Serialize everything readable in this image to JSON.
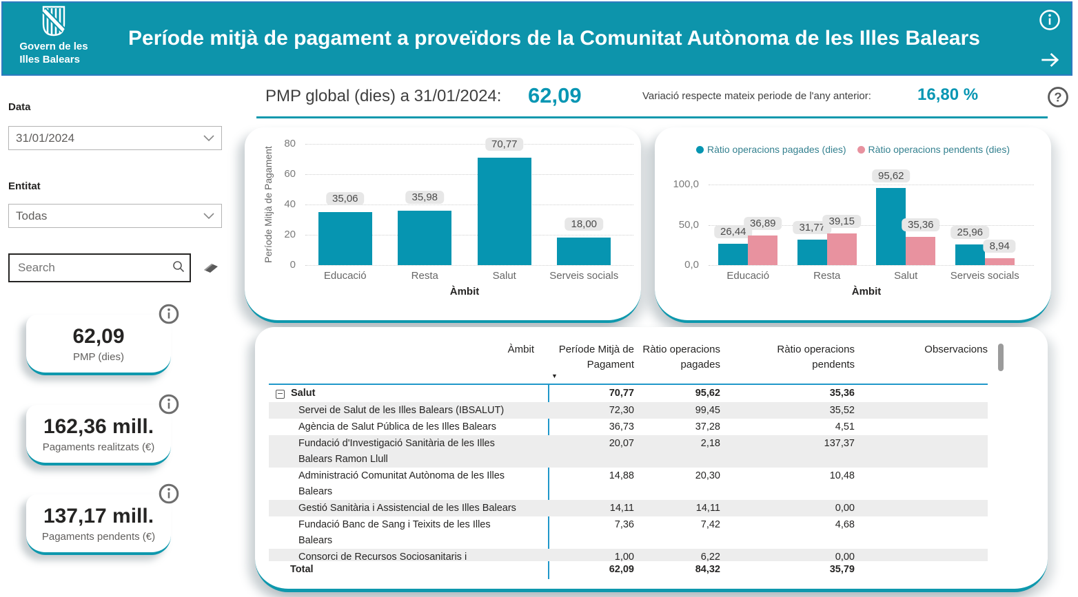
{
  "theme": {
    "teal": "#0695b1",
    "pink": "#e8929f",
    "accent": "#0e98ad",
    "header_bg": "#0d94ab",
    "line_blue": "#1f97c9"
  },
  "header": {
    "logo_line1": "Govern de les",
    "logo_line2": "Illes Balears",
    "title": "Període mitjà de pagament a proveïdors de la Comunitat Autònoma de les Illes Balears"
  },
  "headline": {
    "left_label": "PMP global (dies) a 31/01/2024:",
    "left_value": "62,09",
    "right_label": "Variació respecte mateix periode de l'any anterior:",
    "right_value": "16,80 %"
  },
  "filters": {
    "data_label": "Data",
    "data_value": "31/01/2024",
    "entitat_label": "Entitat",
    "entitat_value": "Todas",
    "search_placeholder": "Search"
  },
  "kpis": [
    {
      "value": "62,09",
      "label": "PMP (dies)"
    },
    {
      "value": "162,36 mill.",
      "label": "Pagaments realitzats (€)"
    },
    {
      "value": "137,17 mill.",
      "label": "Pagaments pendents (€)"
    }
  ],
  "chart_data": [
    {
      "type": "bar",
      "categories": [
        "Educació",
        "Resta",
        "Salut",
        "Serveis socials"
      ],
      "values": [
        35.06,
        35.98,
        70.77,
        18.0
      ],
      "value_labels": [
        "35,06",
        "35,98",
        "70,77",
        "18,00"
      ],
      "xlabel": "Àmbit",
      "ylabel": "Període Mitjà de Pagament",
      "ylim": [
        0,
        80
      ],
      "ytick_values": [
        0,
        20,
        40,
        60,
        80
      ],
      "ytick_labels": [
        "0",
        "20",
        "40",
        "60",
        "80"
      ],
      "grid": true,
      "bar_color": "#0695b1"
    },
    {
      "type": "bar",
      "categories": [
        "Educació",
        "Resta",
        "Salut",
        "Serveis socials"
      ],
      "series": [
        {
          "name": "Ràtio operacions pagades (dies)",
          "color": "#0695b1",
          "values": [
            26.44,
            31.77,
            95.62,
            25.96
          ],
          "value_labels": [
            "26,44",
            "31,77",
            "95,62",
            "25,96"
          ]
        },
        {
          "name": "Ràtio operacions pendents (dies)",
          "color": "#e8929f",
          "values": [
            36.89,
            39.15,
            35.36,
            8.94
          ],
          "value_labels": [
            "36,89",
            "39,15",
            "35,36",
            "8,94"
          ]
        }
      ],
      "xlabel": "Àmbit",
      "ylabel": "",
      "ylim": [
        0,
        100
      ],
      "ytick_values": [
        0,
        50,
        100
      ],
      "ytick_labels": [
        "0,0",
        "50,0",
        "100,0"
      ],
      "grid": true,
      "legend_position": "top"
    }
  ],
  "table": {
    "columns": [
      "Àmbit",
      "Període Mitjà de Pagament",
      "Ràtio operacions pagades",
      "Ràtio operacions pendents",
      "Observacions"
    ],
    "sort_icon": "▼",
    "rows": [
      {
        "name": "Salut",
        "level": 0,
        "expandable": true,
        "bold": true,
        "shade": false,
        "lines": 1,
        "pmp": "70,77",
        "pagades": "95,62",
        "pendents": "35,36"
      },
      {
        "name": "Servei de Salut de les Illes Balears (IBSALUT)",
        "level": 1,
        "shade": true,
        "lines": 1,
        "pmp": "72,30",
        "pagades": "99,45",
        "pendents": "35,52"
      },
      {
        "name": "Agència de Salut Pública de les Illes Balears",
        "level": 1,
        "shade": false,
        "lines": 1,
        "pmp": "36,73",
        "pagades": "37,28",
        "pendents": "4,51"
      },
      {
        "name": "Fundació d'Investigació Sanitària de les Illes Balears Ramon Llull",
        "level": 1,
        "shade": true,
        "lines": 2,
        "pmp": "20,07",
        "pagades": "2,18",
        "pendents": "137,37"
      },
      {
        "name": "Administració Comunitat Autònoma de les Illes Balears",
        "level": 1,
        "shade": false,
        "lines": 2,
        "pmp": "14,88",
        "pagades": "20,30",
        "pendents": "10,48"
      },
      {
        "name": "Gestió Sanitària i Assistencial de les Illes Balears",
        "level": 1,
        "shade": true,
        "lines": 1,
        "pmp": "14,11",
        "pagades": "14,11",
        "pendents": "0,00"
      },
      {
        "name": "Fundació Banc de Sang i Teixits de les Illes Balears",
        "level": 1,
        "shade": false,
        "lines": 2,
        "pmp": "7,36",
        "pagades": "7,42",
        "pendents": "4,68"
      },
      {
        "name": "Consorci de Recursos Sociosanitaris i",
        "level": 1,
        "shade": true,
        "lines": 1,
        "clipped": true,
        "pmp": "1,00",
        "pagades": "6,22",
        "pendents": "0,00"
      }
    ],
    "total": {
      "name": "Total",
      "pmp": "62,09",
      "pagades": "84,32",
      "pendents": "35,79"
    }
  }
}
